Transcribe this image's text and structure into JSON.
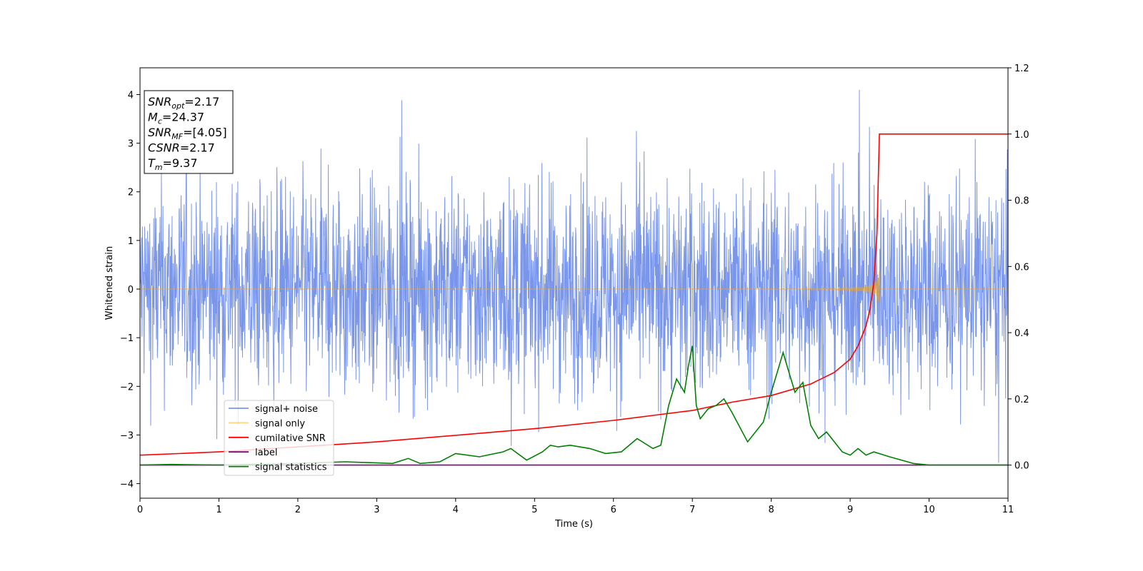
{
  "chart_data": {
    "type": "line",
    "xlabel": "Time (s)",
    "ylabel": "Whitened strain",
    "xlim": [
      0,
      11
    ],
    "ylim_left": [
      -4.3,
      4.55
    ],
    "ylim_right": [
      -0.1,
      1.2
    ],
    "x_ticks": [
      "0",
      "1",
      "2",
      "3",
      "4",
      "5",
      "6",
      "7",
      "8",
      "9",
      "10",
      "11"
    ],
    "y_ticks_left": [
      "4",
      "3",
      "2",
      "1",
      "0",
      "−1",
      "−2",
      "−3",
      "−4"
    ],
    "y_ticks_right": [
      "1.2",
      "1.0",
      "0.8",
      "0.6",
      "0.4",
      "0.2",
      "0.0"
    ],
    "annotation": [
      {
        "base": "SNR",
        "sub": "opt",
        "value": "=2.17"
      },
      {
        "base": "M",
        "sub": "c",
        "value": "=24.37"
      },
      {
        "base": "SNR",
        "sub": "MF",
        "value": "=[4.05]"
      },
      {
        "base": "CSNR",
        "sub": "",
        "value": "=2.17"
      },
      {
        "base": "T",
        "sub": "m",
        "value": "=9.37"
      }
    ],
    "legend_position": "lower-left",
    "series": [
      {
        "name": "signal+ noise",
        "color": "#4169e1",
        "axis": "left",
        "kind": "noise",
        "noise_envelope": [
          -3.0,
          3.1
        ]
      },
      {
        "name": "signal only",
        "color": "#ffa500",
        "axis": "left",
        "kind": "chirp",
        "merger_time": 9.37,
        "peak_amplitude": 0.45
      },
      {
        "name": "cumilative SNR",
        "color": "#ff0000",
        "axis": "right",
        "x": [
          0,
          1,
          2,
          3,
          4,
          5,
          6,
          6.5,
          7,
          7.5,
          8,
          8.5,
          8.8,
          9,
          9.1,
          9.2,
          9.25,
          9.3,
          9.34,
          9.37,
          9.4,
          11
        ],
        "y": [
          0.03,
          0.04,
          0.055,
          0.07,
          0.09,
          0.11,
          0.135,
          0.15,
          0.165,
          0.19,
          0.21,
          0.245,
          0.28,
          0.32,
          0.36,
          0.42,
          0.47,
          0.55,
          0.7,
          1.0,
          1.0,
          1.0
        ]
      },
      {
        "name": "label",
        "color": "#800080",
        "axis": "right",
        "x": [
          0,
          11
        ],
        "y": [
          0,
          0
        ]
      },
      {
        "name": "signal statistics",
        "color": "#008000",
        "axis": "right",
        "x": [
          0,
          0.4,
          1.0,
          2.0,
          2.6,
          3.2,
          3.4,
          3.55,
          3.8,
          4.0,
          4.3,
          4.6,
          4.7,
          4.9,
          5.1,
          5.2,
          5.3,
          5.45,
          5.7,
          5.9,
          6.1,
          6.3,
          6.5,
          6.6,
          6.7,
          6.8,
          6.9,
          6.95,
          7.0,
          7.05,
          7.1,
          7.2,
          7.3,
          7.4,
          7.5,
          7.7,
          7.9,
          8.0,
          8.1,
          8.15,
          8.2,
          8.3,
          8.4,
          8.5,
          8.6,
          8.7,
          8.8,
          8.9,
          9.0,
          9.1,
          9.2,
          9.3,
          9.5,
          9.8,
          10.0,
          10.5,
          11.0
        ],
        "y": [
          0,
          0.002,
          0,
          0.005,
          0.01,
          0.005,
          0.02,
          0.005,
          0.01,
          0.035,
          0.025,
          0.04,
          0.05,
          0.015,
          0.04,
          0.06,
          0.055,
          0.06,
          0.05,
          0.035,
          0.04,
          0.08,
          0.05,
          0.06,
          0.18,
          0.26,
          0.22,
          0.3,
          0.36,
          0.18,
          0.14,
          0.17,
          0.18,
          0.2,
          0.16,
          0.07,
          0.13,
          0.22,
          0.3,
          0.34,
          0.3,
          0.22,
          0.25,
          0.12,
          0.08,
          0.1,
          0.07,
          0.04,
          0.03,
          0.05,
          0.03,
          0.04,
          0.025,
          0.005,
          0,
          0,
          0
        ]
      }
    ]
  }
}
